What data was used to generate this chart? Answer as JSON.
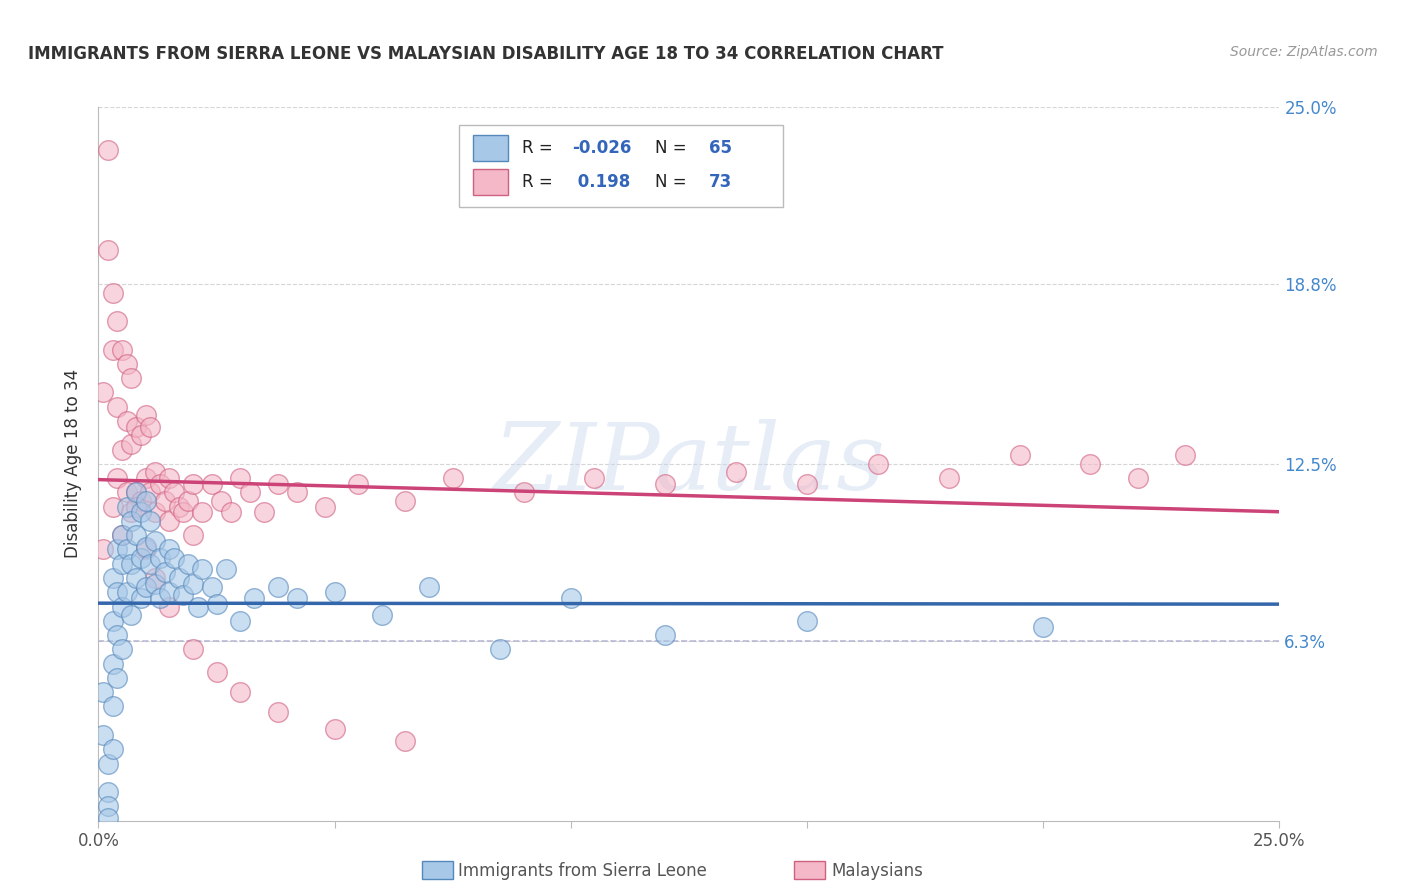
{
  "title": "IMMIGRANTS FROM SIERRA LEONE VS MALAYSIAN DISABILITY AGE 18 TO 34 CORRELATION CHART",
  "source": "Source: ZipAtlas.com",
  "ylabel": "Disability Age 18 to 34",
  "xlim": [
    0.0,
    0.25
  ],
  "ylim": [
    0.0,
    0.25
  ],
  "xticks": [
    0.0,
    0.05,
    0.1,
    0.15,
    0.2,
    0.25
  ],
  "xtick_labels": [
    "0.0%",
    "",
    "",
    "",
    "",
    "25.0%"
  ],
  "ytick_vals_right": [
    0.063,
    0.125,
    0.188,
    0.25
  ],
  "ytick_labels_right": [
    "6.3%",
    "12.5%",
    "18.8%",
    "25.0%"
  ],
  "color_blue": "#a8c8e8",
  "color_pink": "#f4b8c8",
  "edge_blue": "#5588bb",
  "edge_pink": "#d06080",
  "line_color_blue": "#3366aa",
  "line_color_pink": "#cc4477",
  "dashed_line_y": 0.063,
  "watermark_text": "ZIPatlas",
  "blue_r": "-0.026",
  "blue_n": "65",
  "pink_r": "0.198",
  "pink_n": "73",
  "sierra_leone_x": [
    0.001,
    0.001,
    0.002,
    0.002,
    0.002,
    0.002,
    0.003,
    0.003,
    0.003,
    0.003,
    0.003,
    0.004,
    0.004,
    0.004,
    0.004,
    0.005,
    0.005,
    0.005,
    0.005,
    0.006,
    0.006,
    0.006,
    0.007,
    0.007,
    0.007,
    0.008,
    0.008,
    0.008,
    0.009,
    0.009,
    0.009,
    0.01,
    0.01,
    0.01,
    0.011,
    0.011,
    0.012,
    0.012,
    0.013,
    0.013,
    0.014,
    0.015,
    0.015,
    0.016,
    0.017,
    0.018,
    0.019,
    0.02,
    0.021,
    0.022,
    0.024,
    0.025,
    0.027,
    0.03,
    0.033,
    0.038,
    0.042,
    0.05,
    0.06,
    0.07,
    0.085,
    0.1,
    0.12,
    0.15,
    0.2
  ],
  "sierra_leone_y": [
    0.045,
    0.03,
    0.02,
    0.01,
    0.005,
    0.001,
    0.085,
    0.07,
    0.055,
    0.04,
    0.025,
    0.095,
    0.08,
    0.065,
    0.05,
    0.1,
    0.09,
    0.075,
    0.06,
    0.11,
    0.095,
    0.08,
    0.105,
    0.09,
    0.072,
    0.115,
    0.1,
    0.085,
    0.108,
    0.092,
    0.078,
    0.112,
    0.096,
    0.082,
    0.105,
    0.09,
    0.098,
    0.083,
    0.092,
    0.078,
    0.087,
    0.095,
    0.08,
    0.092,
    0.085,
    0.079,
    0.09,
    0.083,
    0.075,
    0.088,
    0.082,
    0.076,
    0.088,
    0.07,
    0.078,
    0.082,
    0.078,
    0.08,
    0.072,
    0.082,
    0.06,
    0.078,
    0.065,
    0.07,
    0.068
  ],
  "malaysian_x": [
    0.001,
    0.001,
    0.002,
    0.002,
    0.003,
    0.003,
    0.003,
    0.004,
    0.004,
    0.004,
    0.005,
    0.005,
    0.005,
    0.006,
    0.006,
    0.006,
    0.007,
    0.007,
    0.007,
    0.008,
    0.008,
    0.009,
    0.009,
    0.01,
    0.01,
    0.011,
    0.011,
    0.012,
    0.012,
    0.013,
    0.014,
    0.015,
    0.015,
    0.016,
    0.017,
    0.018,
    0.019,
    0.02,
    0.02,
    0.022,
    0.024,
    0.026,
    0.028,
    0.03,
    0.032,
    0.035,
    0.038,
    0.042,
    0.048,
    0.055,
    0.065,
    0.075,
    0.09,
    0.105,
    0.12,
    0.135,
    0.15,
    0.165,
    0.18,
    0.195,
    0.21,
    0.22,
    0.23,
    0.008,
    0.01,
    0.012,
    0.015,
    0.02,
    0.025,
    0.03,
    0.038,
    0.05,
    0.065
  ],
  "malaysian_y": [
    0.095,
    0.15,
    0.235,
    0.2,
    0.11,
    0.165,
    0.185,
    0.12,
    0.145,
    0.175,
    0.1,
    0.13,
    0.165,
    0.115,
    0.14,
    0.16,
    0.108,
    0.132,
    0.155,
    0.115,
    0.138,
    0.112,
    0.135,
    0.12,
    0.142,
    0.115,
    0.138,
    0.122,
    0.108,
    0.118,
    0.112,
    0.12,
    0.105,
    0.115,
    0.11,
    0.108,
    0.112,
    0.118,
    0.1,
    0.108,
    0.118,
    0.112,
    0.108,
    0.12,
    0.115,
    0.108,
    0.118,
    0.115,
    0.11,
    0.118,
    0.112,
    0.12,
    0.115,
    0.12,
    0.118,
    0.122,
    0.118,
    0.125,
    0.12,
    0.128,
    0.125,
    0.12,
    0.128,
    0.11,
    0.095,
    0.085,
    0.075,
    0.06,
    0.052,
    0.045,
    0.038,
    0.032,
    0.028
  ]
}
